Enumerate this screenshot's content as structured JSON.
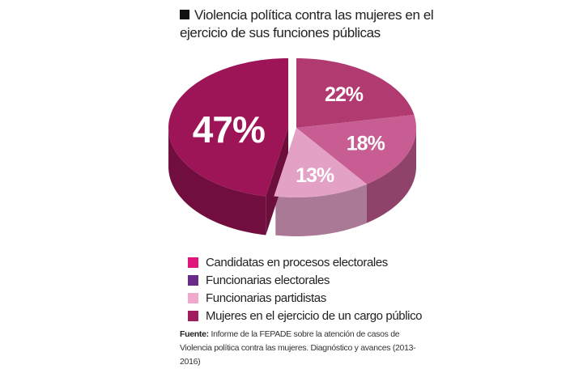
{
  "chart_data": {
    "type": "pie",
    "title": "Violencia política contra las mujeres en el ejercicio de sus funciones públicas",
    "slices": [
      {
        "label": "Candidatas en procesos electorales",
        "value": 22,
        "display": "22%",
        "color": "#b13a70",
        "legend_color": "#e0147a"
      },
      {
        "label": "Funcionarias electorales",
        "value": 18,
        "display": "18%",
        "color": "#c75d93",
        "legend_color": "#6a2a8a"
      },
      {
        "label": "Funcionarias partidistas",
        "value": 13,
        "display": "13%",
        "color": "#e3a1c6",
        "legend_color": "#f0a8cc"
      },
      {
        "label": "Mujeres en el ejercicio de un cargo público",
        "value": 47,
        "display": "47%",
        "color": "#9d1457",
        "legend_color": "#a01e5e"
      }
    ]
  },
  "title_line1": "Violencia política contra las mujeres en el",
  "title_line2": "ejercicio de sus funciones públicas",
  "source_label": "Fuente:",
  "source_text": "Informe de la FEPADE sobre la atención de casos de Violencia política contra las mujeres. Diagnóstico y avances (2013-2016)"
}
